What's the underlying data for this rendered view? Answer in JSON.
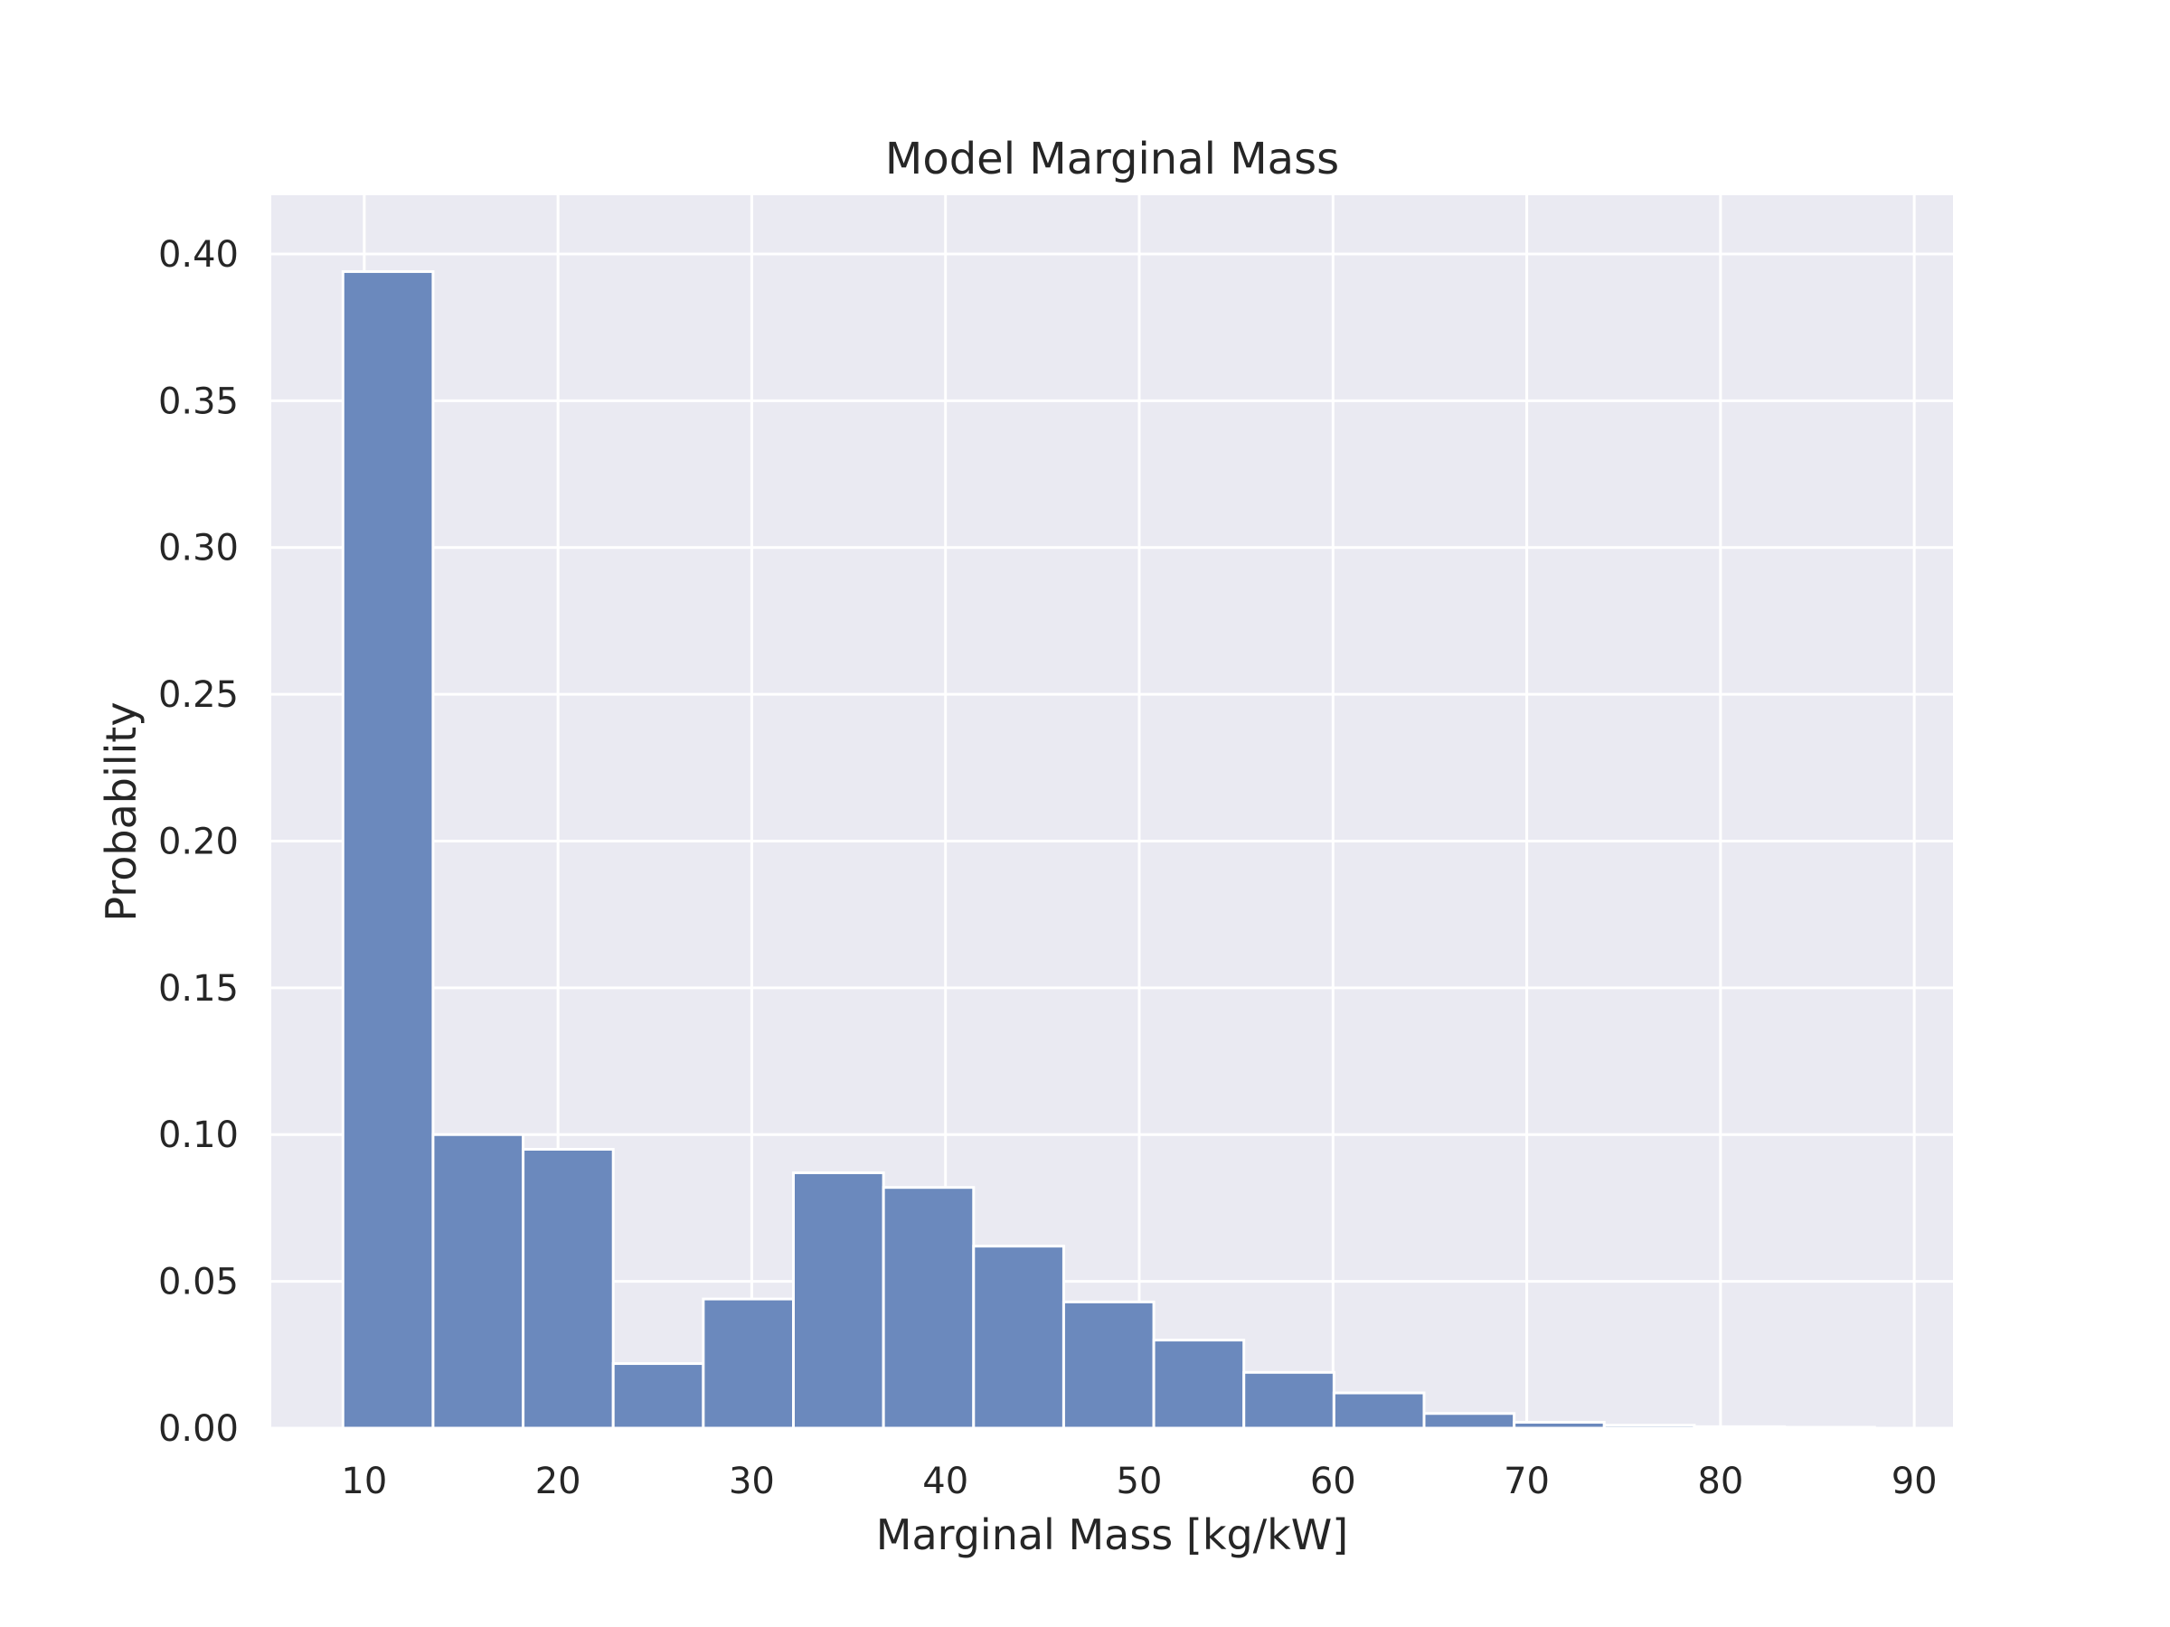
{
  "chart_data": {
    "type": "bar",
    "title": "Model Marginal Mass",
    "xlabel": "Marginal Mass [kg/kW]",
    "ylabel": "Probability",
    "xlim": [
      5.2,
      92.0
    ],
    "ylim": [
      0,
      0.42
    ],
    "xticks": [
      10,
      20,
      30,
      40,
      50,
      60,
      70,
      80,
      90
    ],
    "xtick_labels": [
      "10",
      "20",
      "30",
      "40",
      "50",
      "60",
      "70",
      "80",
      "90"
    ],
    "yticks": [
      0.0,
      0.05,
      0.1,
      0.15,
      0.2,
      0.25,
      0.3,
      0.35,
      0.4
    ],
    "ytick_labels": [
      "0.00",
      "0.05",
      "0.10",
      "0.15",
      "0.20",
      "0.25",
      "0.30",
      "0.35",
      "0.40"
    ],
    "grid": true,
    "bin_edges": [
      8.9,
      13.55,
      18.2,
      22.85,
      27.5,
      32.15,
      36.8,
      41.45,
      46.1,
      50.75,
      55.4,
      60.05,
      64.7,
      69.35,
      74.0,
      78.65,
      83.3,
      87.95
    ],
    "values": [
      0.394,
      0.1,
      0.095,
      0.022,
      0.044,
      0.087,
      0.082,
      0.062,
      0.043,
      0.03,
      0.019,
      0.012,
      0.005,
      0.002,
      0.001,
      0.0005,
      0.0003
    ],
    "colors": {
      "background": "#eaeaf2",
      "bar_fill": "#6b89bd",
      "bar_stroke": "#ffffff",
      "grid": "#ffffff",
      "text": "#262626"
    }
  }
}
